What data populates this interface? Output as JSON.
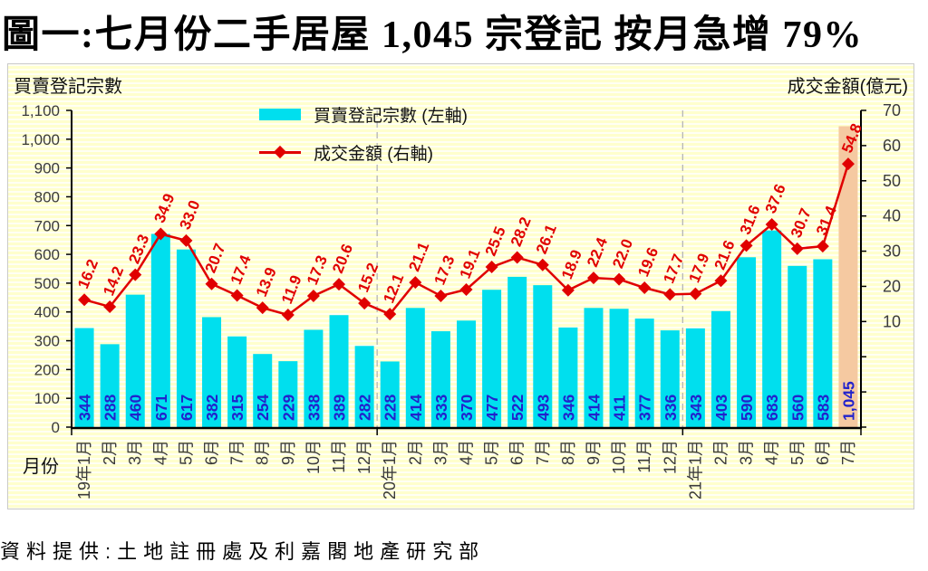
{
  "title": "圖一:七月份二手居屋 1,045 宗登記  按月急增 79%",
  "source": "資料提供:土地註冊處及利嘉閣地產研究部",
  "axes": {
    "left_header": "買賣登記宗數",
    "right_header": "成交金額(億元)",
    "x_header": "月份"
  },
  "legend": [
    {
      "label": "買賣登記宗數 (左軸)",
      "type": "bar"
    },
    {
      "label": "成交金額 (右軸)",
      "type": "line"
    }
  ],
  "colors": {
    "bar": "#00DFEE",
    "bar_highlight": "#F5C9A1",
    "line": "#E00000",
    "bar_label": "#2222CC",
    "value_label": "#E00000",
    "axis_text": "#3a3a3a",
    "axis_line": "#000000",
    "dashed_grid": "#b5b5b5"
  },
  "chart_data": {
    "type": "bar",
    "title": "圖一:七月份二手居屋 1,045 宗登記  按月急增 79%",
    "categories": [
      "19年1月",
      "2月",
      "3月",
      "4月",
      "5月",
      "6月",
      "7月",
      "8月",
      "9月",
      "10月",
      "11月",
      "12月",
      "20年1月",
      "2月",
      "3月",
      "4月",
      "5月",
      "6月",
      "7月",
      "8月",
      "9月",
      "10月",
      "11月",
      "12月",
      "21年1月",
      "2月",
      "3月",
      "4月",
      "5月",
      "6月",
      "7月"
    ],
    "series": [
      {
        "name": "買賣登記宗數 (左軸)",
        "type": "bar",
        "axis": "left",
        "values": [
          344,
          288,
          460,
          671,
          617,
          382,
          315,
          254,
          229,
          338,
          389,
          282,
          228,
          414,
          333,
          370,
          477,
          522,
          493,
          346,
          414,
          411,
          377,
          336,
          343,
          403,
          590,
          683,
          560,
          583,
          1045
        ]
      },
      {
        "name": "成交金額 (右軸)",
        "type": "line",
        "axis": "right",
        "values": [
          16.2,
          14.2,
          23.3,
          34.9,
          33.0,
          20.7,
          17.4,
          13.9,
          11.9,
          17.3,
          20.6,
          15.2,
          12.1,
          21.1,
          17.3,
          19.1,
          25.5,
          28.2,
          26.1,
          18.9,
          22.4,
          22.0,
          19.6,
          17.7,
          17.9,
          21.6,
          31.6,
          37.6,
          30.7,
          31.4,
          54.8
        ]
      }
    ],
    "left_axis": {
      "min": 0,
      "max": 1100,
      "ticks": [
        "1,100",
        "1,000",
        "900",
        "800",
        "700",
        "600",
        "500",
        "400",
        "300",
        "200",
        "100",
        "0"
      ]
    },
    "right_axis": {
      "min": -20,
      "max": 70,
      "tick_step": 10,
      "ticks": [
        "70",
        "60",
        "50",
        "40",
        "30",
        "20",
        "10"
      ]
    },
    "xlabel": "月份",
    "ylabel_left": "買賣登記宗數",
    "ylabel_right": "成交金額(億元)",
    "highlight_last_bar": true,
    "year_boundary_indices": [
      12,
      24
    ],
    "grid": "vertical-dashed-at-year-boundaries",
    "legend_position": "top-center"
  }
}
